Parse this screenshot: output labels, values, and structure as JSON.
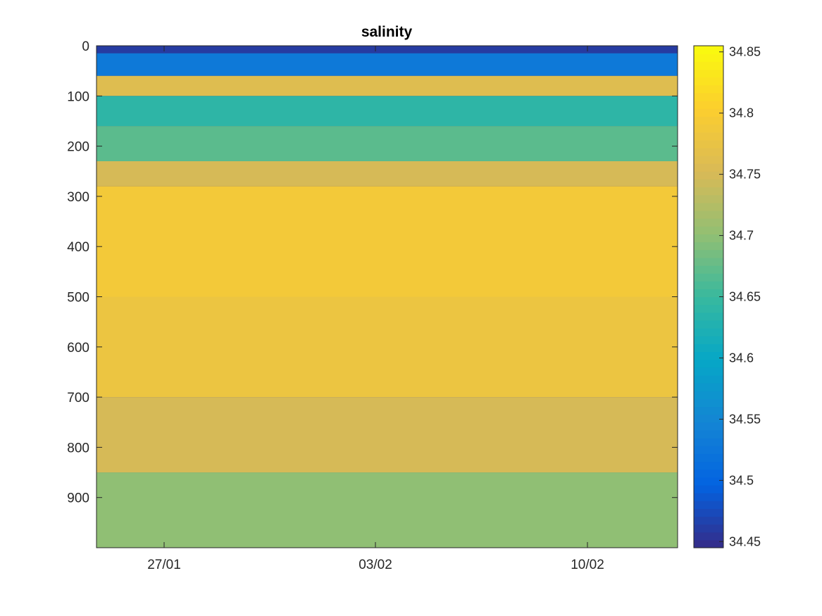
{
  "chart_data": {
    "type": "heatmap",
    "title": "salinity",
    "xlabel": "",
    "ylabel": "",
    "x_ticks": [
      "27/01",
      "03/02",
      "10/02"
    ],
    "y_ticks": [
      0,
      100,
      200,
      300,
      400,
      500,
      600,
      700,
      800,
      900
    ],
    "y_range": [
      0,
      1000
    ],
    "y_direction": "reversed",
    "colorbar": {
      "colormap": "parula",
      "range": [
        34.445,
        34.855
      ],
      "ticks": [
        "34.45",
        "34.5",
        "34.55",
        "34.6",
        "34.65",
        "34.7",
        "34.75",
        "34.8",
        "34.85"
      ]
    },
    "layers": [
      {
        "depth_top": 0,
        "depth_bottom": 15,
        "value": 34.46
      },
      {
        "depth_top": 15,
        "depth_bottom": 60,
        "value": 34.53
      },
      {
        "depth_top": 60,
        "depth_bottom": 100,
        "value": 34.76
      },
      {
        "depth_top": 100,
        "depth_bottom": 160,
        "value": 34.64
      },
      {
        "depth_top": 160,
        "depth_bottom": 230,
        "value": 34.67
      },
      {
        "depth_top": 230,
        "depth_bottom": 280,
        "value": 34.75
      },
      {
        "depth_top": 280,
        "depth_bottom": 500,
        "value": 34.79
      },
      {
        "depth_top": 500,
        "depth_bottom": 700,
        "value": 34.78
      },
      {
        "depth_top": 700,
        "depth_bottom": 850,
        "value": 34.75
      },
      {
        "depth_top": 850,
        "depth_bottom": 1000,
        "value": 34.7
      }
    ]
  }
}
